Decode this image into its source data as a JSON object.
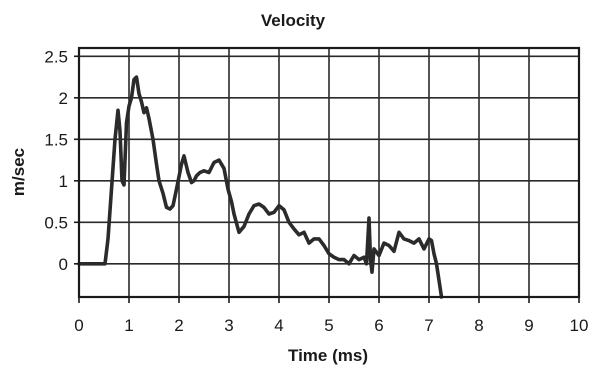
{
  "chart_data": {
    "type": "line",
    "title": "Velocity",
    "xlabel": "Time (ms)",
    "ylabel": "m/sec",
    "xlim": [
      0,
      10
    ],
    "ylim": [
      -0.4,
      2.6
    ],
    "xticks": [
      0,
      1,
      2,
      3,
      4,
      5,
      6,
      7,
      8,
      9,
      10
    ],
    "yticks": [
      0,
      0.5,
      1,
      1.5,
      2,
      2.5
    ],
    "ytick_labels": [
      "0",
      "0.5",
      "1",
      "1.5",
      "2",
      "2.5"
    ],
    "grid": true,
    "series": [
      {
        "color": "#2b2b2b",
        "x": [
          0.0,
          0.45,
          0.52,
          0.58,
          0.65,
          0.72,
          0.78,
          0.82,
          0.86,
          0.9,
          0.95,
          1.0,
          1.05,
          1.1,
          1.15,
          1.2,
          1.25,
          1.3,
          1.35,
          1.4,
          1.48,
          1.55,
          1.6,
          1.68,
          1.75,
          1.82,
          1.88,
          1.95,
          2.05,
          2.1,
          2.18,
          2.25,
          2.3,
          2.35,
          2.42,
          2.5,
          2.6,
          2.7,
          2.8,
          2.9,
          2.98,
          3.05,
          3.1,
          3.2,
          3.3,
          3.4,
          3.5,
          3.6,
          3.7,
          3.8,
          3.9,
          4.0,
          4.1,
          4.2,
          4.3,
          4.4,
          4.5,
          4.6,
          4.7,
          4.8,
          4.9,
          5.0,
          5.1,
          5.2,
          5.3,
          5.4,
          5.5,
          5.6,
          5.7,
          5.75,
          5.8,
          5.83,
          5.86,
          5.9,
          6.0,
          6.1,
          6.2,
          6.3,
          6.4,
          6.5,
          6.6,
          6.7,
          6.8,
          6.9,
          7.0,
          7.05,
          7.1,
          7.15,
          7.2,
          7.25
        ],
        "values": [
          0.0,
          0.0,
          0.0,
          0.3,
          0.9,
          1.5,
          1.85,
          1.6,
          1.0,
          0.95,
          1.7,
          1.9,
          2.0,
          2.22,
          2.25,
          2.05,
          1.95,
          1.82,
          1.88,
          1.75,
          1.5,
          1.2,
          1.0,
          0.85,
          0.68,
          0.66,
          0.7,
          0.9,
          1.2,
          1.3,
          1.1,
          0.98,
          1.0,
          1.06,
          1.1,
          1.12,
          1.1,
          1.22,
          1.25,
          1.15,
          0.9,
          0.75,
          0.6,
          0.38,
          0.45,
          0.6,
          0.7,
          0.72,
          0.68,
          0.6,
          0.62,
          0.7,
          0.65,
          0.5,
          0.42,
          0.35,
          0.38,
          0.25,
          0.3,
          0.3,
          0.22,
          0.12,
          0.08,
          0.05,
          0.05,
          0.0,
          0.1,
          0.05,
          0.08,
          0.0,
          0.55,
          0.05,
          -0.1,
          0.18,
          0.1,
          0.25,
          0.22,
          0.15,
          0.38,
          0.3,
          0.28,
          0.25,
          0.3,
          0.18,
          0.3,
          0.28,
          0.12,
          0.0,
          -0.2,
          -0.4
        ]
      }
    ]
  }
}
